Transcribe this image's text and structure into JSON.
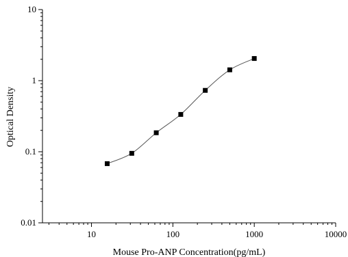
{
  "chart_data": {
    "type": "scatter",
    "title": "",
    "xlabel": "Mouse Pro-ANP Concentration(pg/mL)",
    "ylabel": "Optical Density",
    "xscale": "log",
    "yscale": "log",
    "xlim": [
      2.5,
      10000
    ],
    "ylim": [
      0.01,
      10
    ],
    "xticks": [
      10,
      100,
      1000,
      10000
    ],
    "xtick_labels": [
      "10",
      "100",
      "1000",
      "10000"
    ],
    "yticks": [
      0.01,
      0.1,
      1,
      10
    ],
    "ytick_labels": [
      "0.01",
      "0.1",
      "1",
      "10"
    ],
    "grid": false,
    "legend": "none",
    "series": [
      {
        "x": [
          15.6,
          31.25,
          62.5,
          125,
          250,
          500,
          1000
        ],
        "y": [
          0.068,
          0.095,
          0.185,
          0.335,
          0.73,
          1.42,
          2.05
        ],
        "marker": "square",
        "line": "smooth",
        "color": "#000000",
        "line_color": "#555555"
      }
    ]
  }
}
